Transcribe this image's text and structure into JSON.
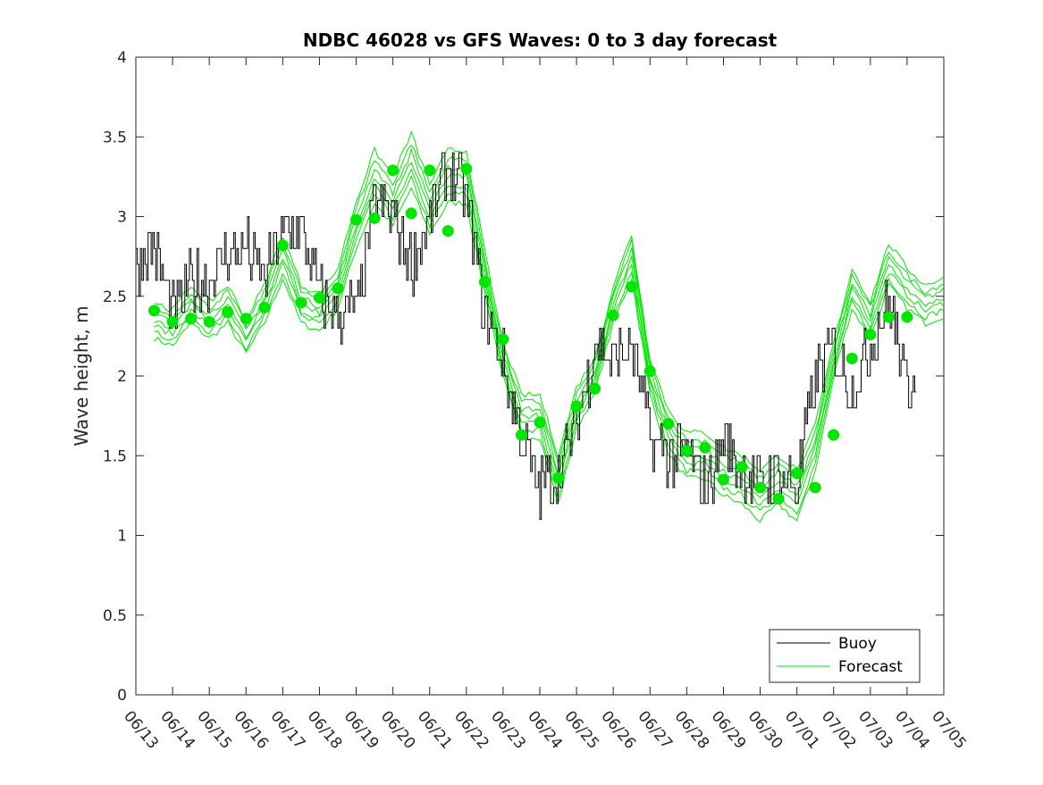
{
  "chart_data": {
    "type": "line",
    "title": "NDBC 46028 vs GFS Waves: 0 to 3 day forecast",
    "xlabel": "",
    "ylabel": "Wave height, m",
    "xlim": [
      "06/13",
      "07/05"
    ],
    "ylim": [
      0,
      4
    ],
    "yticks": [
      0,
      0.5,
      1,
      1.5,
      2,
      2.5,
      3,
      3.5,
      4
    ],
    "ytick_labels": [
      "0",
      "0.5",
      "1",
      "1.5",
      "2",
      "2.5",
      "3",
      "3.5",
      "4"
    ],
    "xtick_labels": [
      "06/13",
      "06/14",
      "06/15",
      "06/16",
      "06/17",
      "06/18",
      "06/19",
      "06/20",
      "06/21",
      "06/22",
      "06/23",
      "06/24",
      "06/25",
      "06/26",
      "06/27",
      "06/28",
      "06/29",
      "06/30",
      "07/01",
      "07/02",
      "07/03",
      "07/04",
      "07/05"
    ],
    "grid": false,
    "legend": {
      "placement": "bottom-right",
      "entries": [
        "Buoy",
        "Forecast"
      ]
    },
    "colors": {
      "buoy": "#000000",
      "forecast": "#00e600"
    },
    "series": [
      {
        "name": "Buoy",
        "x_days": [
          0,
          0.5,
          1,
          1.5,
          2,
          2.5,
          3,
          3.5,
          4,
          4.5,
          5,
          5.5,
          6,
          6.5,
          7,
          7.5,
          8,
          8.5,
          9,
          9.5,
          10,
          10.5,
          11,
          11.5,
          12,
          12.5,
          13,
          13.5,
          14,
          14.5,
          15,
          15.5,
          16,
          16.5,
          17,
          17.5,
          18,
          18.5,
          19,
          19.5,
          20,
          20.5,
          21,
          21.25
        ],
        "y": [
          2.7,
          2.8,
          2.4,
          2.6,
          2.6,
          2.8,
          2.8,
          2.6,
          2.9,
          2.9,
          2.5,
          2.4,
          2.4,
          3.1,
          3.0,
          2.7,
          3.0,
          3.3,
          3.1,
          2.4,
          2.1,
          1.6,
          1.3,
          1.4,
          1.7,
          2.2,
          2.1,
          2.2,
          1.6,
          1.5,
          1.5,
          1.3,
          1.6,
          1.4,
          1.3,
          1.4,
          1.3,
          2.0,
          2.2,
          1.9,
          2.2,
          2.5,
          1.9,
          2.1
        ]
      },
      {
        "name": "Forecast",
        "x_days": [
          0.5,
          1,
          1.5,
          2,
          2.5,
          3,
          3.5,
          4,
          4.5,
          5,
          5.5,
          6,
          6.5,
          7,
          7.5,
          8,
          8.5,
          9,
          9.5,
          10,
          10.5,
          11,
          11.5,
          12,
          12.5,
          13,
          13.5,
          14,
          14.5,
          15,
          15.5,
          16,
          16.5,
          17,
          17.5,
          18,
          18.5,
          19,
          19.5,
          20,
          20.5,
          21,
          21.5,
          22
        ],
        "y": [
          2.35,
          2.3,
          2.45,
          2.35,
          2.45,
          2.25,
          2.45,
          2.75,
          2.45,
          2.4,
          2.55,
          2.95,
          3.25,
          3.1,
          3.35,
          3.05,
          3.25,
          3.25,
          2.65,
          2.1,
          1.75,
          1.75,
          1.35,
          1.8,
          2.0,
          2.45,
          2.75,
          2.0,
          1.65,
          1.5,
          1.5,
          1.4,
          1.35,
          1.25,
          1.35,
          1.25,
          1.55,
          2.1,
          2.55,
          2.35,
          2.7,
          2.55,
          2.45,
          2.5
        ]
      },
      {
        "name": "Forecast markers",
        "x_days": [
          0.5,
          1,
          1.5,
          2,
          2.5,
          3,
          3.5,
          4,
          4.5,
          5,
          5.5,
          6,
          6.5,
          7,
          7.5,
          8,
          8.5,
          9,
          9.5,
          10,
          10.5,
          11,
          11.5,
          12,
          12.5,
          13,
          13.5,
          14,
          14.5,
          15,
          15.5,
          16,
          16.5,
          17,
          17.5,
          18,
          18.5,
          19,
          19.5,
          20,
          20.5,
          21
        ],
        "y": [
          2.41,
          2.34,
          2.36,
          2.34,
          2.4,
          2.36,
          2.43,
          2.82,
          2.46,
          2.49,
          2.55,
          2.98,
          2.99,
          3.29,
          3.02,
          3.29,
          2.91,
          3.3,
          2.59,
          2.23,
          1.63,
          1.71,
          1.36,
          1.81,
          1.92,
          2.38,
          2.56,
          2.03,
          1.7,
          1.53,
          1.55,
          1.35,
          1.43,
          1.3,
          1.23,
          1.39,
          1.3,
          1.63,
          2.11,
          2.26,
          2.37,
          2.37
        ]
      }
    ]
  }
}
